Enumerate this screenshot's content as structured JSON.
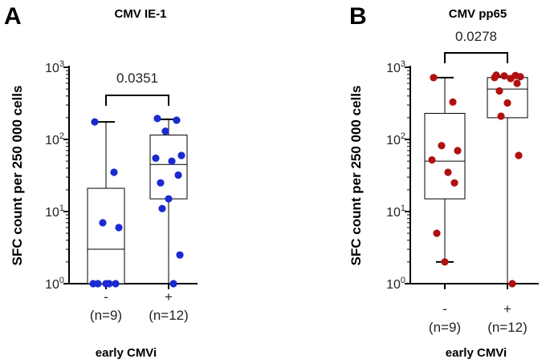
{
  "chart_data": [
    {
      "type": "box",
      "panel": "A",
      "title": "CMV IE-1",
      "xlabel": "early CMVi",
      "ylabel": "SFC count per 250 000 cells",
      "yscale": "log",
      "ylim": [
        1,
        1000
      ],
      "yticks": [
        {
          "base": "10",
          "exp": "0",
          "value": 1
        },
        {
          "base": "10",
          "exp": "1",
          "value": 10
        },
        {
          "base": "10",
          "exp": "2",
          "value": 100
        },
        {
          "base": "10",
          "exp": "3",
          "value": 1000
        }
      ],
      "categories": [
        {
          "symbol": "-",
          "n": "(n=9)"
        },
        {
          "symbol": "+",
          "n": "(n=12)"
        }
      ],
      "point_color": "#1a2ad0",
      "p_value": "0.0351",
      "groups": [
        {
          "name": "-",
          "box": {
            "min": 1,
            "q1": 1,
            "median": 3,
            "q3": 21,
            "max": 175
          },
          "points": [
            175,
            35,
            7,
            6,
            1,
            1,
            1,
            1,
            1
          ]
        },
        {
          "name": "+",
          "box": {
            "min": 1,
            "q1": 15,
            "median": 45,
            "q3": 115,
            "max": 190
          },
          "points": [
            195,
            185,
            130,
            60,
            55,
            50,
            32,
            25,
            15,
            11,
            2.5,
            1
          ]
        }
      ]
    },
    {
      "type": "box",
      "panel": "B",
      "title": "CMV pp65",
      "xlabel": "early CMVi",
      "ylabel": "SFC count per 250 000 cells",
      "yscale": "log",
      "ylim": [
        1,
        1000
      ],
      "yticks": [
        {
          "base": "10",
          "exp": "0",
          "value": 1
        },
        {
          "base": "10",
          "exp": "1",
          "value": 10
        },
        {
          "base": "10",
          "exp": "2",
          "value": 100
        },
        {
          "base": "10",
          "exp": "3",
          "value": 1000
        }
      ],
      "categories": [
        {
          "symbol": "-",
          "n": "(n=9)"
        },
        {
          "symbol": "+",
          "n": "(n=12)"
        }
      ],
      "point_color": "#b01010",
      "p_value": "0.0278",
      "groups": [
        {
          "name": "-",
          "box": {
            "min": 2,
            "q1": 15,
            "median": 50,
            "q3": 230,
            "max": 720
          },
          "points": [
            720,
            330,
            82,
            70,
            52,
            35,
            25,
            5,
            2
          ]
        },
        {
          "name": "+",
          "box": {
            "min": 1,
            "q1": 200,
            "median": 500,
            "q3": 720,
            "max": 750
          },
          "points": [
            780,
            770,
            760,
            740,
            720,
            700,
            600,
            470,
            320,
            210,
            60,
            1
          ]
        }
      ]
    }
  ]
}
